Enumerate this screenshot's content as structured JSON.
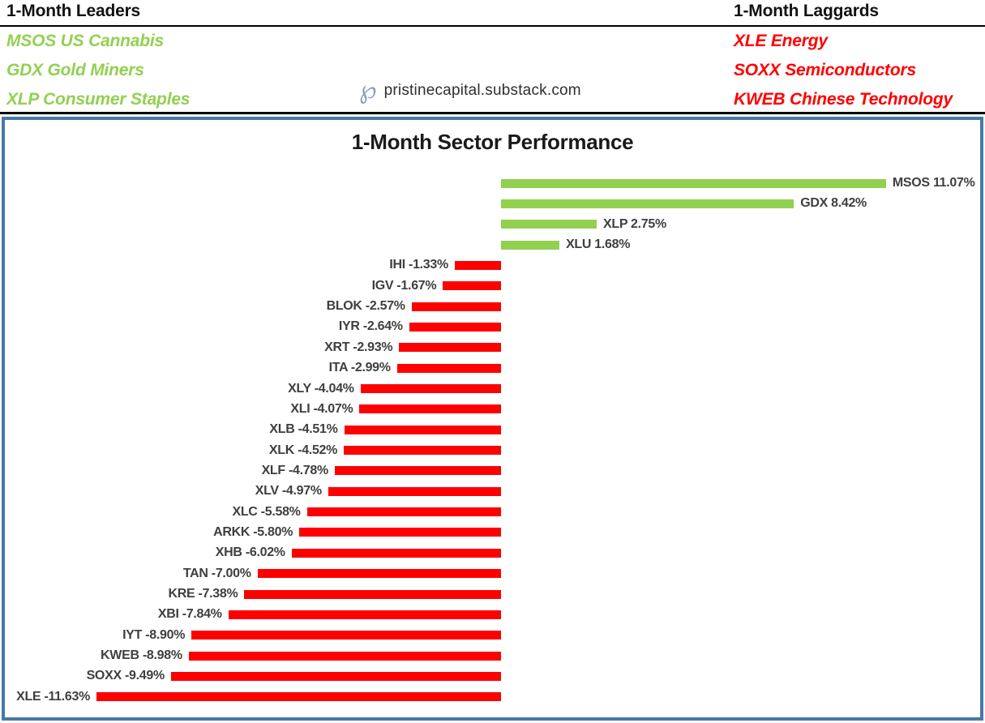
{
  "header": {
    "leaders": {
      "title": "1-Month Leaders",
      "items": [
        "MSOS US Cannabis",
        "GDX Gold Miners",
        "XLP Consumer Staples"
      ]
    },
    "laggards": {
      "title": "1-Month Laggards",
      "items": [
        "XLE Energy",
        "SOXX Semiconductors",
        "KWEB Chinese Technology"
      ]
    },
    "brand": {
      "logo_glyph": "℘",
      "logo_name": "pristine-capital-script-p-logo",
      "text": "pristinecapital.substack.com"
    }
  },
  "colors": {
    "positive_green": "#92D050",
    "negative_red": "#FF0000",
    "label_gray": "#3f3f3f",
    "box_border_blue": "#4779A7",
    "logo_blue": "#8B9EC0"
  },
  "chart_data": {
    "type": "bar",
    "orientation": "horizontal",
    "title": "1-Month Sector Performance",
    "unit": "%",
    "xlim": [
      -12,
      12
    ],
    "grid": false,
    "value_labels": "end-of-bar",
    "categories": [
      "MSOS",
      "GDX",
      "XLP",
      "XLU",
      "IHI",
      "IGV",
      "BLOK",
      "IYR",
      "XRT",
      "ITA",
      "XLY",
      "XLI",
      "XLB",
      "XLK",
      "XLF",
      "XLV",
      "XLC",
      "ARKK",
      "XHB",
      "TAN",
      "KRE",
      "XBI",
      "IYT",
      "KWEB",
      "SOXX",
      "XLE"
    ],
    "values": [
      11.07,
      8.42,
      2.75,
      1.68,
      -1.33,
      -1.67,
      -2.57,
      -2.64,
      -2.93,
      -2.99,
      -4.04,
      -4.07,
      -4.51,
      -4.52,
      -4.78,
      -4.97,
      -5.58,
      -5.8,
      -6.02,
      -7.0,
      -7.38,
      -7.84,
      -8.9,
      -8.98,
      -9.49,
      -11.63
    ],
    "points": [
      {
        "ticker": "MSOS",
        "value": 11.07,
        "label": "MSOS 11.07%"
      },
      {
        "ticker": "GDX",
        "value": 8.42,
        "label": "GDX 8.42%"
      },
      {
        "ticker": "XLP",
        "value": 2.75,
        "label": "XLP 2.75%"
      },
      {
        "ticker": "XLU",
        "value": 1.68,
        "label": "XLU 1.68%"
      },
      {
        "ticker": "IHI",
        "value": -1.33,
        "label": "IHI -1.33%"
      },
      {
        "ticker": "IGV",
        "value": -1.67,
        "label": "IGV -1.67%"
      },
      {
        "ticker": "BLOK",
        "value": -2.57,
        "label": "BLOK -2.57%"
      },
      {
        "ticker": "IYR",
        "value": -2.64,
        "label": "IYR -2.64%"
      },
      {
        "ticker": "XRT",
        "value": -2.93,
        "label": "XRT -2.93%"
      },
      {
        "ticker": "ITA",
        "value": -2.99,
        "label": "ITA -2.99%"
      },
      {
        "ticker": "XLY",
        "value": -4.04,
        "label": "XLY -4.04%"
      },
      {
        "ticker": "XLI",
        "value": -4.07,
        "label": "XLI -4.07%"
      },
      {
        "ticker": "XLB",
        "value": -4.51,
        "label": "XLB -4.51%"
      },
      {
        "ticker": "XLK",
        "value": -4.52,
        "label": "XLK -4.52%"
      },
      {
        "ticker": "XLF",
        "value": -4.78,
        "label": "XLF -4.78%"
      },
      {
        "ticker": "XLV",
        "value": -4.97,
        "label": "XLV -4.97%"
      },
      {
        "ticker": "XLC",
        "value": -5.58,
        "label": "XLC -5.58%"
      },
      {
        "ticker": "ARKK",
        "value": -5.8,
        "label": "ARKK -5.80%"
      },
      {
        "ticker": "XHB",
        "value": -6.02,
        "label": "XHB -6.02%"
      },
      {
        "ticker": "TAN",
        "value": -7.0,
        "label": "TAN -7.00%"
      },
      {
        "ticker": "KRE",
        "value": -7.38,
        "label": "KRE -7.38%"
      },
      {
        "ticker": "XBI",
        "value": -7.84,
        "label": "XBI -7.84%"
      },
      {
        "ticker": "IYT",
        "value": -8.9,
        "label": "IYT -8.90%"
      },
      {
        "ticker": "KWEB",
        "value": -8.98,
        "label": "KWEB -8.98%"
      },
      {
        "ticker": "SOXX",
        "value": -9.49,
        "label": "SOXX -9.49%"
      },
      {
        "ticker": "XLE",
        "value": -11.63,
        "label": "XLE -11.63%"
      }
    ]
  }
}
